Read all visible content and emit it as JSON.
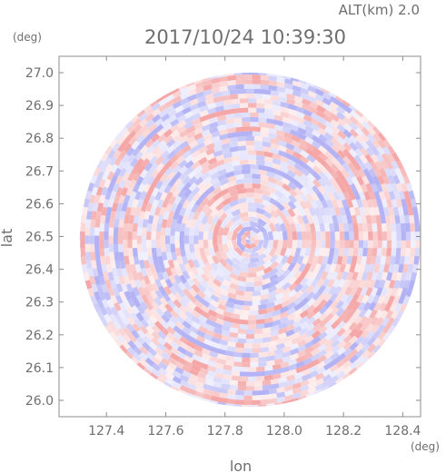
{
  "chart_data": {
    "type": "heatmap",
    "subtype": "radar-ppi",
    "altitude_label": "ALT(km)  2.0",
    "timestamp": "2017/10/24 10:39:30",
    "xlabel": "lon",
    "ylabel": "lat",
    "x_unit": "(deg)",
    "y_unit": "(deg)",
    "xlim": [
      127.24,
      128.46
    ],
    "ylim": [
      25.95,
      27.05
    ],
    "x_ticks": [
      127.4,
      127.6,
      127.8,
      128.0,
      128.2,
      128.4
    ],
    "x_tick_labels": [
      "127.4",
      "127.6",
      "127.8",
      "128.0",
      "128.2",
      "128.4"
    ],
    "y_ticks": [
      26.0,
      26.1,
      26.2,
      26.3,
      26.4,
      26.5,
      26.6,
      26.7,
      26.8,
      26.9,
      27.0
    ],
    "y_tick_labels": [
      "26.0",
      "26.1",
      "26.2",
      "26.3",
      "26.4",
      "26.5",
      "26.6",
      "26.7",
      "26.8",
      "26.9",
      "27.0"
    ],
    "radar_center": {
      "lon": 127.885,
      "lat": 26.49
    },
    "radar_range_deg_lon": 0.575,
    "radar_range_deg_lat": 0.51,
    "colors": {
      "positive": "#f08080",
      "negative": "#8c8cf0",
      "zero": "#ffffff",
      "axis": "#8c8c8c"
    }
  }
}
